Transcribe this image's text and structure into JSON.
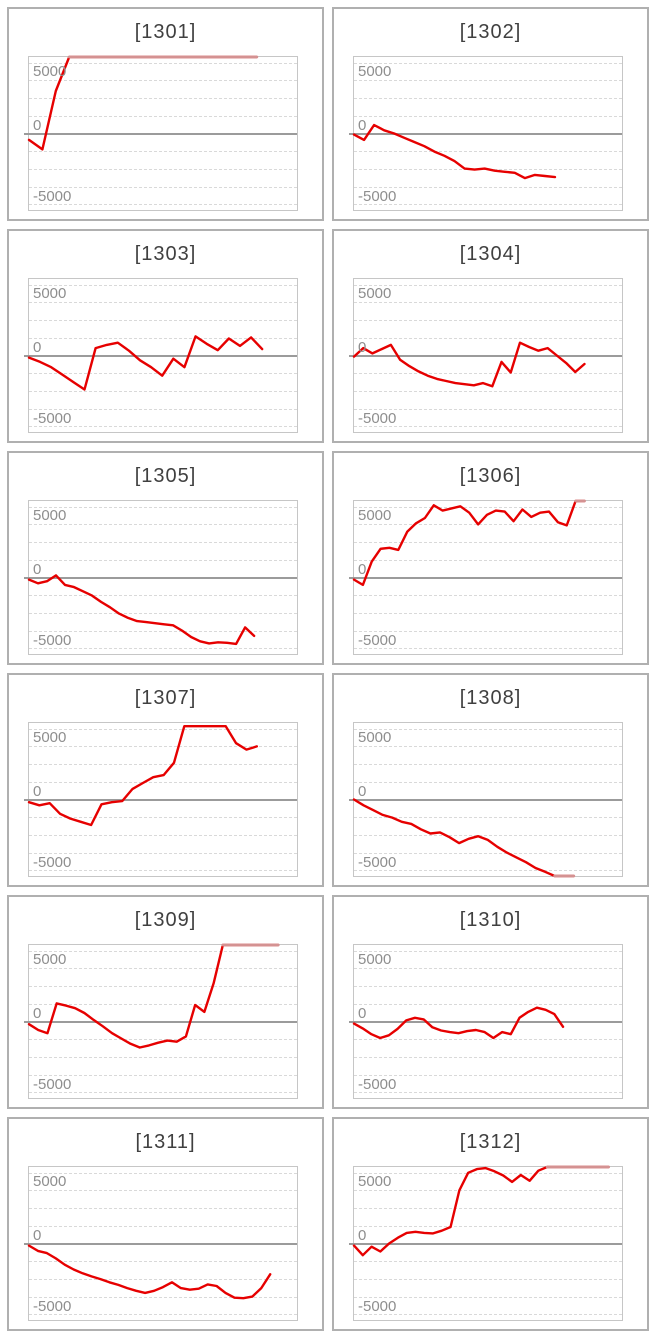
{
  "page": {
    "background": "#ffffff"
  },
  "chart_style": {
    "line_color": "#e60000",
    "clipped_line_color": "#d49292",
    "zero_axis_color": "#9b9b9b",
    "gridline_color": "#d9d9d9",
    "plot_border_color": "#c6c6c6",
    "panel_border_color": "#b0b0b0",
    "title_color": "#404040",
    "tick_label_color": "#8e8e8e",
    "grid_interval": 1667
  },
  "chart_data": [
    {
      "type": "line",
      "title": "[1301]",
      "ylim": [
        -7200,
        7200
      ],
      "grid": true,
      "legend": "none",
      "yticks": [
        {
          "label": "5000",
          "value": 5000
        },
        {
          "label": "0",
          "value": 0
        },
        {
          "label": "-5000",
          "value": -5000
        }
      ],
      "x_extent": 0.85,
      "values": [
        -600,
        -1500,
        4000,
        7200,
        7200,
        7200,
        7200,
        7200,
        7200,
        7200,
        7200,
        7200,
        7200,
        7200,
        7200,
        7200,
        7200,
        7200
      ]
    },
    {
      "type": "line",
      "title": "[1302]",
      "ylim": [
        -7200,
        7200
      ],
      "grid": true,
      "legend": "none",
      "yticks": [
        {
          "label": "5000",
          "value": 5000
        },
        {
          "label": "0",
          "value": 0
        },
        {
          "label": "-5000",
          "value": -5000
        }
      ],
      "x_extent": 0.75,
      "values": [
        -100,
        -600,
        800,
        300,
        0,
        -400,
        -800,
        -1200,
        -1700,
        -2100,
        -2600,
        -3300,
        -3400,
        -3300,
        -3500,
        -3600,
        -3700,
        -4200,
        -3900,
        -4000,
        -4100
      ]
    },
    {
      "type": "line",
      "title": "[1303]",
      "ylim": [
        -7200,
        7200
      ],
      "grid": true,
      "legend": "none",
      "yticks": [
        {
          "label": "5000",
          "value": 5000
        },
        {
          "label": "0",
          "value": 0
        },
        {
          "label": "-5000",
          "value": -5000
        }
      ],
      "x_extent": 0.87,
      "values": [
        -200,
        -600,
        -1100,
        -1800,
        -2500,
        -3200,
        700,
        1000,
        1200,
        450,
        -450,
        -1100,
        -1900,
        -300,
        -1100,
        1800,
        1100,
        500,
        1600,
        900,
        1700,
        600
      ]
    },
    {
      "type": "line",
      "title": "[1304]",
      "ylim": [
        -7200,
        7200
      ],
      "grid": true,
      "legend": "none",
      "yticks": [
        {
          "label": "5000",
          "value": 5000
        },
        {
          "label": "0",
          "value": 0
        },
        {
          "label": "-5000",
          "value": -5000
        }
      ],
      "x_extent": 0.86,
      "values": [
        -100,
        700,
        200,
        600,
        1000,
        -400,
        -1000,
        -1500,
        -1900,
        -2200,
        -2400,
        -2600,
        -2700,
        -2800,
        -2600,
        -2900,
        -600,
        -1600,
        1200,
        800,
        450,
        700,
        0,
        -700,
        -1550,
        -800
      ]
    },
    {
      "type": "line",
      "title": "[1305]",
      "ylim": [
        -7200,
        7200
      ],
      "grid": true,
      "legend": "none",
      "yticks": [
        {
          "label": "5000",
          "value": 5000
        },
        {
          "label": "0",
          "value": 0
        },
        {
          "label": "-5000",
          "value": -5000
        }
      ],
      "x_extent": 0.84,
      "values": [
        -200,
        -550,
        -350,
        200,
        -700,
        -900,
        -1300,
        -1700,
        -2300,
        -2800,
        -3400,
        -3800,
        -4100,
        -4200,
        -4300,
        -4400,
        -4500,
        -5000,
        -5600,
        -6000,
        -6200,
        -6100,
        -6150,
        -6250,
        -4700,
        -5500
      ]
    },
    {
      "type": "line",
      "title": "[1306]",
      "ylim": [
        -7200,
        7200
      ],
      "grid": true,
      "legend": "none",
      "yticks": [
        {
          "label": "5000",
          "value": 5000
        },
        {
          "label": "0",
          "value": 0
        },
        {
          "label": "-5000",
          "value": -5000
        }
      ],
      "x_extent": 0.86,
      "values": [
        -200,
        -700,
        1500,
        2700,
        2800,
        2600,
        4300,
        5100,
        5600,
        6800,
        6300,
        6500,
        6700,
        6100,
        5000,
        5900,
        6300,
        6200,
        5300,
        6400,
        5700,
        6100,
        6200,
        5200,
        4900,
        7200,
        7200
      ]
    },
    {
      "type": "line",
      "title": "[1307]",
      "ylim": [
        -7200,
        7200
      ],
      "grid": true,
      "legend": "none",
      "yticks": [
        {
          "label": "5000",
          "value": 5000
        },
        {
          "label": "0",
          "value": 0
        },
        {
          "label": "-5000",
          "value": -5000
        }
      ],
      "x_extent": 0.85,
      "values": [
        -250,
        -550,
        -350,
        -1350,
        -1800,
        -2100,
        -2400,
        -450,
        -250,
        -150,
        1000,
        1550,
        2100,
        2300,
        3450,
        6900,
        6900,
        6900,
        6900,
        6900,
        5300,
        4700,
        5000
      ]
    },
    {
      "type": "line",
      "title": "[1308]",
      "ylim": [
        -7200,
        7200
      ],
      "grid": true,
      "legend": "none",
      "yticks": [
        {
          "label": "5000",
          "value": 5000
        },
        {
          "label": "0",
          "value": 0
        },
        {
          "label": "-5000",
          "value": -5000
        }
      ],
      "x_extent": 0.82,
      "values": [
        0,
        -550,
        -1000,
        -1450,
        -1700,
        -2100,
        -2300,
        -2800,
        -3200,
        -3100,
        -3550,
        -4100,
        -3700,
        -3450,
        -3800,
        -4450,
        -5000,
        -5450,
        -5900,
        -6450,
        -6800,
        -7200,
        -7200,
        -7200
      ]
    },
    {
      "type": "line",
      "title": "[1309]",
      "ylim": [
        -7200,
        7200
      ],
      "grid": true,
      "legend": "none",
      "yticks": [
        {
          "label": "5000",
          "value": 5000
        },
        {
          "label": "0",
          "value": 0
        },
        {
          "label": "-5000",
          "value": -5000
        }
      ],
      "x_extent": 0.93,
      "values": [
        -250,
        -800,
        -1100,
        1700,
        1500,
        1250,
        800,
        150,
        -450,
        -1100,
        -1600,
        -2100,
        -2450,
        -2250,
        -2000,
        -1800,
        -1900,
        -1400,
        1550,
        900,
        3600,
        7200,
        7200,
        7200,
        7200,
        7200,
        7200,
        7200
      ]
    },
    {
      "type": "line",
      "title": "[1310]",
      "ylim": [
        -7200,
        7200
      ],
      "grid": true,
      "legend": "none",
      "yticks": [
        {
          "label": "5000",
          "value": 5000
        },
        {
          "label": "0",
          "value": 0
        },
        {
          "label": "-5000",
          "value": -5000
        }
      ],
      "x_extent": 0.78,
      "values": [
        -200,
        -650,
        -1200,
        -1550,
        -1300,
        -700,
        100,
        350,
        200,
        -550,
        -850,
        -1000,
        -1100,
        -900,
        -800,
        -1000,
        -1550,
        -1000,
        -1200,
        350,
        900,
        1300,
        1100,
        700,
        -500
      ]
    },
    {
      "type": "line",
      "title": "[1311]",
      "ylim": [
        -7200,
        7200
      ],
      "grid": true,
      "legend": "none",
      "yticks": [
        {
          "label": "5000",
          "value": 5000
        },
        {
          "label": "0",
          "value": 0
        },
        {
          "label": "-5000",
          "value": -5000
        }
      ],
      "x_extent": 0.9,
      "values": [
        -200,
        -700,
        -900,
        -1400,
        -2000,
        -2450,
        -2800,
        -3100,
        -3350,
        -3650,
        -3900,
        -4200,
        -4450,
        -4650,
        -4450,
        -4100,
        -3650,
        -4200,
        -4350,
        -4250,
        -3850,
        -4000,
        -4650,
        -5100,
        -5150,
        -5000,
        -4200,
        -2900
      ]
    },
    {
      "type": "line",
      "title": "[1312]",
      "ylim": [
        -7200,
        7200
      ],
      "grid": true,
      "legend": "none",
      "yticks": [
        {
          "label": "5000",
          "value": 5000
        },
        {
          "label": "0",
          "value": 0
        },
        {
          "label": "-5000",
          "value": -5000
        }
      ],
      "x_extent": 0.95,
      "values": [
        -200,
        -1100,
        -300,
        -750,
        0,
        550,
        1000,
        1100,
        1000,
        950,
        1200,
        1550,
        5000,
        6650,
        7000,
        7100,
        6800,
        6400,
        5800,
        6450,
        5900,
        6850,
        7200,
        7200,
        7200,
        7200,
        7200,
        7200,
        7200,
        7200
      ]
    }
  ]
}
